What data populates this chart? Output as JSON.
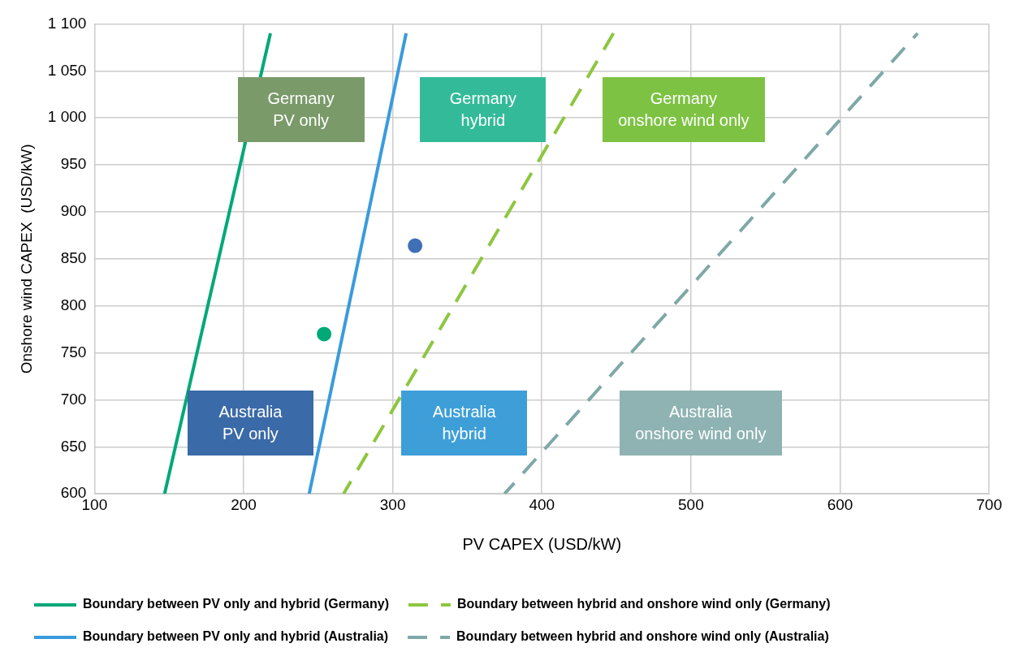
{
  "chart_data": {
    "type": "line",
    "xlabel": "PV CAPEX (USD/kW)",
    "ylabel": "Onshore wind CAPEX  (USD/kW)",
    "xlim": [
      100,
      700
    ],
    "xticks": [
      100,
      200,
      300,
      400,
      500,
      600,
      700
    ],
    "ylim": [
      600,
      1100
    ],
    "yticks": [
      600,
      650,
      700,
      750,
      800,
      850,
      900,
      950,
      {
        "value": 1000,
        "label": "1 000"
      },
      {
        "value": 1050,
        "label": "1 050"
      },
      {
        "value": 1100,
        "label": "1 100"
      }
    ],
    "grid": true,
    "legend": "bottom",
    "series": [
      {
        "name": "Boundary between PV only and hybrid (Germany)",
        "color": "#00a878",
        "x": [
          147,
          218
        ],
        "values": [
          600,
          1090
        ],
        "line_style": "solid",
        "marker": "none"
      },
      {
        "name": "Boundary between hybrid and onshore wind only (Germany)",
        "color": "#8dc63f",
        "x": [
          267,
          448
        ],
        "values": [
          600,
          1090
        ],
        "line_style": "dashed",
        "marker": "none"
      },
      {
        "name": "Boundary between PV only and hybrid (Australia)",
        "color": "#3a9bdc",
        "x": [
          244,
          309
        ],
        "values": [
          600,
          1090
        ],
        "line_style": "solid",
        "marker": "none"
      },
      {
        "name": "Boundary between hybrid and onshore wind only (Australia)",
        "color": "#7fa8a8",
        "x": [
          375,
          652
        ],
        "values": [
          600,
          1090
        ],
        "line_style": "dashed",
        "marker": "none"
      },
      {
        "type": "scatter",
        "color": "#00a878",
        "x": [
          254
        ],
        "values": [
          770
        ],
        "marker": "circle"
      },
      {
        "type": "scatter",
        "color": "#3f6fb5",
        "x": [
          315
        ],
        "values": [
          864
        ],
        "marker": "circle"
      }
    ],
    "annotations": [
      "Germany PV only",
      "Germany hybrid",
      "Germany onshore wind only",
      "Australia PV only",
      "Australia hybrid",
      "Australia onshore wind only"
    ]
  }
}
